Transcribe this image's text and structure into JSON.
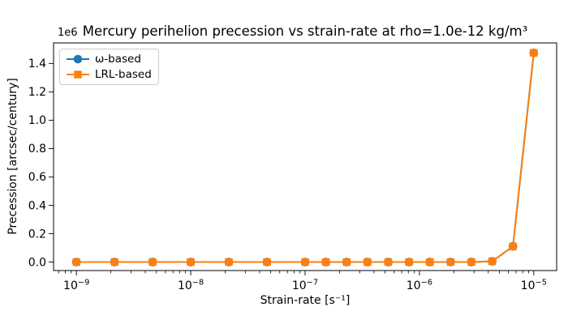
{
  "chart_data": {
    "type": "line",
    "title": "Mercury perihelion precession vs strain-rate at rho=1.0e-12 kg/m³",
    "xlabel": "Strain-rate [s⁻¹]",
    "ylabel": "Precession [arcsec/century]",
    "y_offset_label": "1e6",
    "x_scale": "log",
    "grid": false,
    "legend_position": "upper-left",
    "xlim": [
      6.31e-10,
      1.585e-05
    ],
    "ylim": [
      -60000,
      1545000
    ],
    "x_major_tick_exponents": [
      -9,
      -8,
      -7,
      -6,
      -5
    ],
    "x_major_tick_labels": [
      "10⁻⁹",
      "10⁻⁸",
      "10⁻⁷",
      "10⁻⁶",
      "10⁻⁵"
    ],
    "x_minor_tick_subs": [
      2,
      3,
      4,
      5,
      6,
      7,
      8,
      9
    ],
    "x_minor_decade_range": [
      -10,
      -5
    ],
    "y_ticks": [
      0,
      200000,
      400000,
      600000,
      800000,
      1000000,
      1200000,
      1400000
    ],
    "y_tick_labels": [
      "0.0",
      "0.2",
      "0.4",
      "0.6",
      "0.8",
      "1.0",
      "1.2",
      "1.4"
    ],
    "x": [
      1e-09,
      2.154e-09,
      4.642e-09,
      1e-08,
      2.154e-08,
      4.642e-08,
      1e-07,
      1.52e-07,
      2.31e-07,
      3.511e-07,
      5.337e-07,
      8.111e-07,
      1.233e-06,
      1.874e-06,
      2.848e-06,
      4.329e-06,
      6.579e-06,
      1e-05
    ],
    "series": [
      {
        "name": "ω-based",
        "color": "#1f77b4",
        "marker": "circle",
        "values": [
          0,
          0,
          0,
          0,
          0,
          0,
          0,
          0,
          0,
          0,
          0,
          0,
          0,
          0,
          0,
          5000,
          110000,
          1475000
        ]
      },
      {
        "name": "LRL-based",
        "color": "#ff7f0e",
        "marker": "square",
        "values": [
          0,
          0,
          0,
          0,
          0,
          0,
          0,
          0,
          0,
          0,
          0,
          0,
          0,
          0,
          0,
          5000,
          110000,
          1475000
        ]
      }
    ]
  }
}
